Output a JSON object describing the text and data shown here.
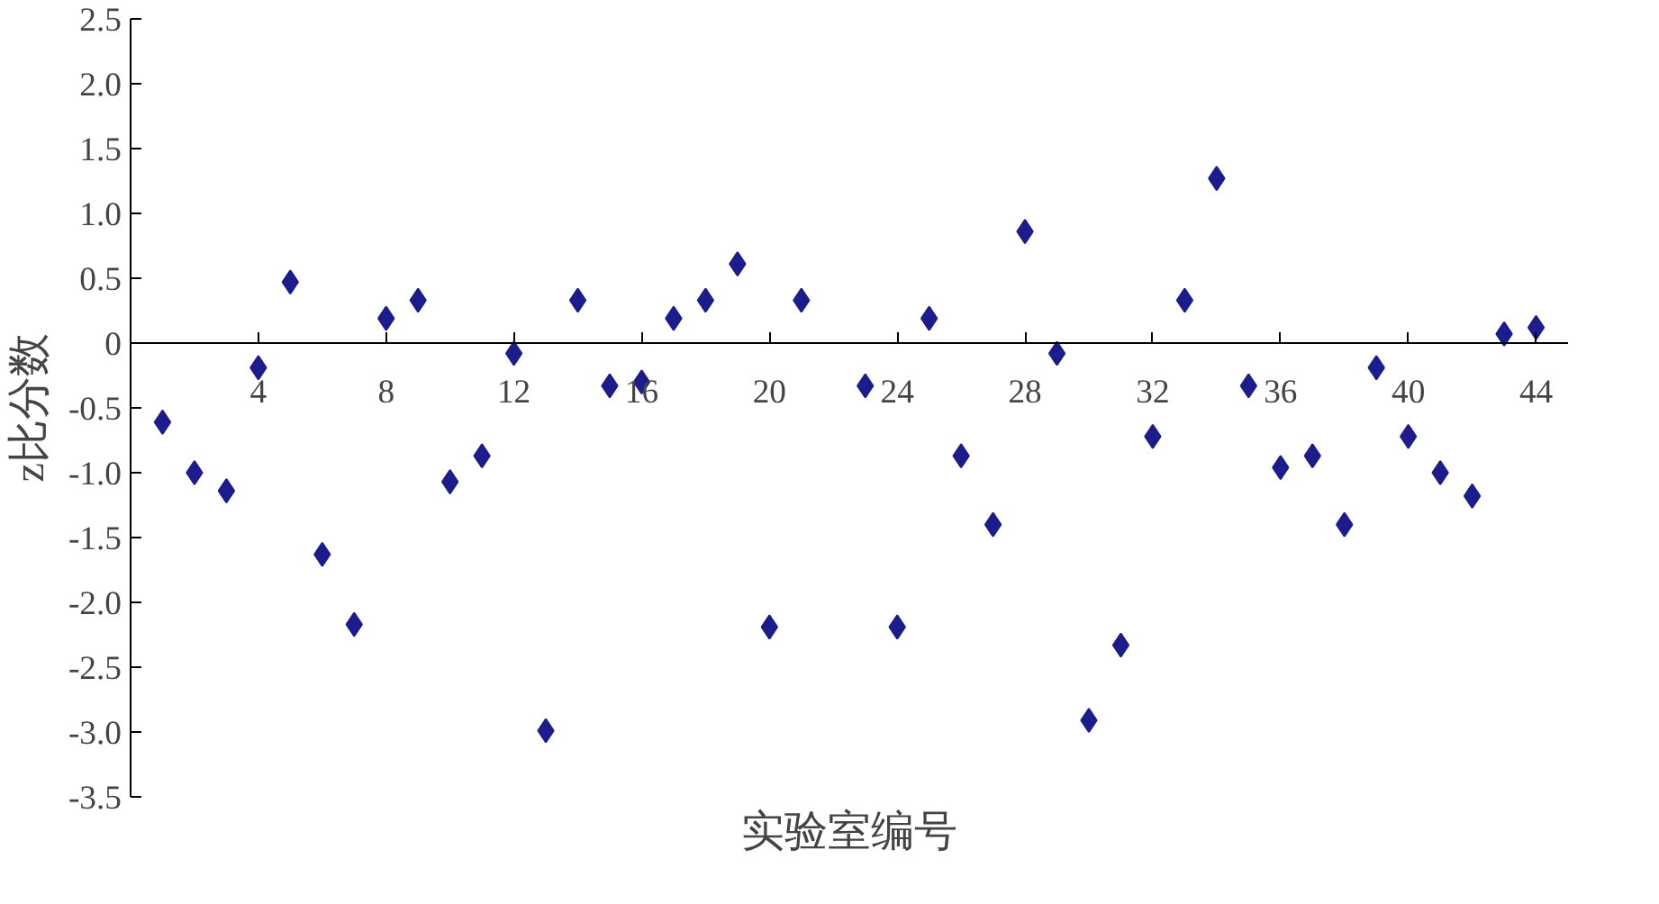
{
  "chart_data": {
    "type": "scatter",
    "xlabel": "实验室编号",
    "ylabel": "z比分数",
    "x": [
      1,
      2,
      3,
      4,
      5,
      6,
      7,
      8,
      9,
      10,
      11,
      12,
      13,
      14,
      15,
      16,
      17,
      18,
      19,
      20,
      21,
      22,
      23,
      24,
      25,
      26,
      27,
      28,
      29,
      30,
      31,
      32,
      33,
      34,
      35,
      36,
      37,
      38,
      39,
      40,
      41,
      42,
      43,
      44
    ],
    "series": [
      {
        "color": "#1c1c8c",
        "values": [
          -0.61,
          -1.0,
          -1.14,
          -0.19,
          0.47,
          -1.63,
          -2.17,
          0.19,
          0.33,
          -1.07,
          -0.87,
          -0.08,
          -2.99,
          0.33,
          -0.33,
          -0.3,
          0.19,
          0.33,
          0.61,
          -2.19,
          0.33,
          null,
          -0.33,
          -2.19,
          0.19,
          -0.87,
          -1.4,
          0.86,
          -0.08,
          -2.91,
          -2.33,
          -0.72,
          0.33,
          1.27,
          -0.33,
          -0.96,
          -0.87,
          -1.4,
          -0.19,
          -0.72,
          -1.0,
          -1.18,
          0.07,
          0.12
        ]
      }
    ],
    "marker": "diamond",
    "grid": false,
    "xlim": [
      0,
      45
    ],
    "xticks": [
      4,
      8,
      12,
      16,
      20,
      24,
      28,
      32,
      36,
      40,
      44
    ],
    "ylim": [
      -3.5,
      2.5
    ],
    "yticks": [
      -3.5,
      {
        "value": -3,
        "label": "-3.0"
      },
      -2.5,
      {
        "value": -2,
        "label": "-2.0"
      },
      -1.5,
      {
        "value": -1,
        "label": "-1.0"
      },
      -0.5,
      0,
      0.5,
      {
        "value": 1,
        "label": "1.0"
      },
      1.5,
      {
        "value": 2,
        "label": "2.0"
      },
      2.5
    ]
  }
}
